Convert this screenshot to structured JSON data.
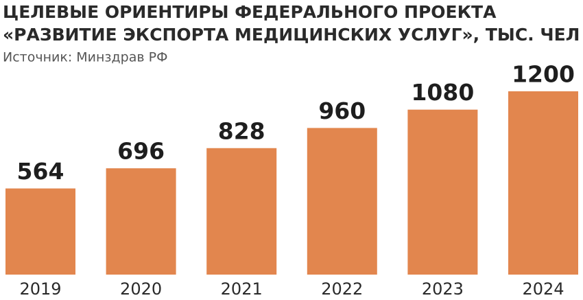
{
  "chart_data": {
    "type": "bar",
    "title": [
      "ЦЕЛЕВЫЕ ОРИЕНТИРЫ ФЕДЕРАЛЬНОГО ПРОЕКТА",
      "«РАЗВИТИЕ ЭКСПОРТА МЕДИЦИНСКИХ УСЛУГ», ТЫС. ЧЕЛ"
    ],
    "subtitle": "Источник: Минздрав РФ",
    "categories": [
      "2019",
      "2020",
      "2021",
      "2022",
      "2023",
      "2024"
    ],
    "values": [
      564,
      696,
      828,
      960,
      1080,
      1200
    ],
    "color": "#e2864e"
  }
}
